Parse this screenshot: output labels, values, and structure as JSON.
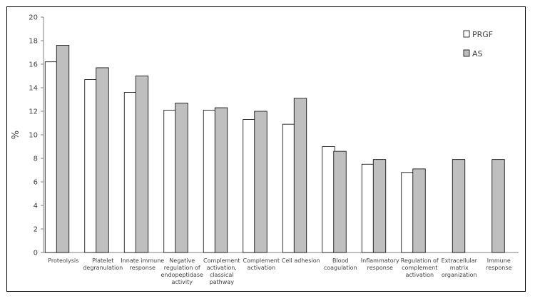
{
  "chart_data": {
    "type": "bar",
    "title": "",
    "xlabel": "",
    "ylabel": "%",
    "ylim": [
      0,
      20
    ],
    "yticks": [
      0,
      2,
      4,
      6,
      8,
      10,
      12,
      14,
      16,
      18,
      20
    ],
    "grid": false,
    "legend_position": "top-right",
    "categories": [
      [
        "Proteolysis"
      ],
      [
        "Platelet",
        "degranulation"
      ],
      [
        "Innate immune",
        "response"
      ],
      [
        "Negative",
        "regulation of",
        "endopeptidase",
        "activity"
      ],
      [
        "Complement",
        "activation,",
        "classical",
        "pathway"
      ],
      [
        "Complement",
        "activation"
      ],
      [
        "Cell adhesion"
      ],
      [
        "Blood",
        "coagulation"
      ],
      [
        "Inflammatory",
        "response"
      ],
      [
        "Regulation of",
        "complement",
        "activation"
      ],
      [
        "Extracellular",
        "matrix",
        "organization"
      ],
      [
        "Immune",
        "response"
      ]
    ],
    "series": [
      {
        "name": "PRGF",
        "color": "#ffffff",
        "values": [
          16.2,
          14.7,
          13.6,
          12.1,
          12.1,
          11.3,
          10.9,
          9.0,
          7.5,
          6.8,
          null,
          null
        ]
      },
      {
        "name": "AS",
        "color": "#bfbfbf",
        "values": [
          17.6,
          15.7,
          15.0,
          12.7,
          12.3,
          12.0,
          13.1,
          8.6,
          7.9,
          7.1,
          7.9,
          7.9
        ]
      }
    ]
  }
}
